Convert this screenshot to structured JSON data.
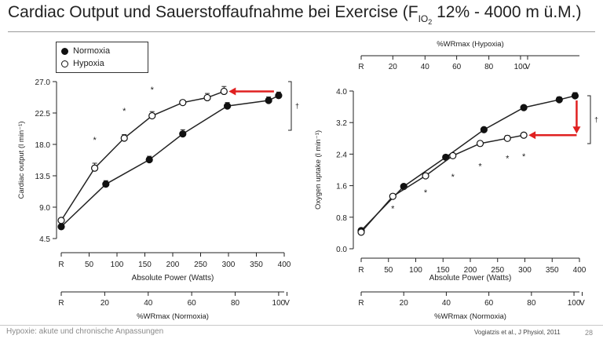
{
  "slide": {
    "title_main": "Cardiac Output und Sauerstoffaufnahme bei Exercise (F",
    "title_sub": "IO",
    "title_sub2": "2",
    "title_rest": " 12%  -  4000 m ü.M.)",
    "footer_left": "Hypoxie: akute und chronische Anpassungen",
    "footer_ref": "Vogiatzis et al., J Physiol, 2011",
    "page_number": "28"
  },
  "legend": {
    "items": [
      {
        "label": "Normoxia",
        "marker": "filled-circle"
      },
      {
        "label": "Hypoxia",
        "marker": "open-circle"
      }
    ]
  },
  "colors": {
    "arrow": "#e02020",
    "line": "#222222",
    "axis": "#222222"
  },
  "chart_data": [
    {
      "type": "line",
      "ylabel": "Cardiac output (l min⁻¹)",
      "xlabel": "Absolute Power (Watts)",
      "x_ticks": [
        "R",
        "50",
        "100",
        "150",
        "200",
        "250",
        "300",
        "350",
        "400"
      ],
      "x_tick_values": [
        0,
        50,
        100,
        150,
        200,
        250,
        300,
        350,
        400
      ],
      "y_ticks": [
        "4.5",
        "9.0",
        "13.5",
        "18.0",
        "22.5",
        "27.0"
      ],
      "y_tick_values": [
        4.5,
        9.0,
        13.5,
        18.0,
        22.5,
        27.0
      ],
      "ylim": [
        4.5,
        27.0
      ],
      "xlim": [
        0,
        400
      ],
      "series": [
        {
          "name": "Normoxia",
          "marker": "filled",
          "x": [
            0,
            80,
            158,
            218,
            298,
            372,
            390
          ],
          "y": [
            6.2,
            12.3,
            15.8,
            19.5,
            23.5,
            24.3,
            25.0
          ],
          "err": [
            0.2,
            0.5,
            0.5,
            0.6,
            0.5,
            0.5,
            0.5
          ]
        },
        {
          "name": "Hypoxia",
          "marker": "open",
          "x": [
            0,
            60,
            113,
            163,
            218,
            262,
            292
          ],
          "y": [
            7.1,
            14.6,
            18.9,
            22.1,
            24.0,
            24.7,
            25.6
          ],
          "err": [
            0.2,
            0.7,
            0.5,
            0.6,
            0.3,
            0.6,
            0.7
          ]
        }
      ],
      "significance_marks": [
        {
          "x": 60,
          "y": 18.2,
          "text": "*"
        },
        {
          "x": 113,
          "y": 22.4,
          "text": "*"
        },
        {
          "x": 163,
          "y": 25.4,
          "text": "*"
        }
      ],
      "dagger": "†",
      "top_axis": null,
      "bottom_axis": {
        "label": "%WRmax (Normoxia)",
        "tick_labels": [
          "R",
          "20",
          "40",
          "60",
          "80",
          "100",
          "V"
        ],
        "tick_power": [
          0,
          78,
          156,
          234,
          312,
          390,
          405
        ]
      }
    },
    {
      "type": "line",
      "ylabel": "Oxygen uptake (l min⁻¹)",
      "xlabel": "Absolute Power (Watts)",
      "x_ticks": [
        "R",
        "50",
        "100",
        "150",
        "200",
        "250",
        "300",
        "350",
        "400"
      ],
      "x_tick_values": [
        0,
        50,
        100,
        150,
        200,
        250,
        300,
        350,
        400
      ],
      "y_ticks": [
        "0.0",
        "0.8",
        "1.6",
        "2.4",
        "3.2",
        "4.0"
      ],
      "y_tick_values": [
        0.0,
        0.8,
        1.6,
        2.4,
        3.2,
        4.0
      ],
      "ylim": [
        0.0,
        4.0
      ],
      "xlim": [
        0,
        400
      ],
      "series": [
        {
          "name": "Normoxia",
          "marker": "filled",
          "x": [
            0,
            78,
            155,
            225,
            298,
            363,
            392
          ],
          "y": [
            0.46,
            1.58,
            2.32,
            3.02,
            3.58,
            3.78,
            3.88
          ],
          "err": [
            0.03,
            0.04,
            0.05,
            0.05,
            0.05,
            0.07,
            0.08
          ]
        },
        {
          "name": "Hypoxia",
          "marker": "open",
          "x": [
            0,
            58,
            118,
            168,
            218,
            268,
            298
          ],
          "y": [
            0.42,
            1.33,
            1.85,
            2.36,
            2.67,
            2.8,
            2.88
          ],
          "err": [
            0.03,
            0.05,
            0.04,
            0.04,
            0.05,
            0.07,
            0.06
          ]
        }
      ],
      "significance_marks": [
        {
          "x": 58,
          "y": 0.95,
          "text": "*"
        },
        {
          "x": 118,
          "y": 1.35,
          "text": "*"
        },
        {
          "x": 168,
          "y": 1.75,
          "text": "*"
        },
        {
          "x": 218,
          "y": 2.02,
          "text": "*"
        },
        {
          "x": 268,
          "y": 2.22,
          "text": "*"
        },
        {
          "x": 298,
          "y": 2.27,
          "text": "*"
        }
      ],
      "dagger": "†",
      "top_axis": {
        "label": "%WRmax (Hypoxia)",
        "tick_labels": [
          "R",
          "20",
          "40",
          "60",
          "80",
          "100",
          "V"
        ],
        "tick_power": [
          0,
          58,
          117,
          175,
          234,
          292,
          305
        ]
      },
      "bottom_axis": {
        "label": "%WRmax (Normoxia)",
        "tick_labels": [
          "R",
          "20",
          "40",
          "60",
          "80",
          "100",
          "V"
        ],
        "tick_power": [
          0,
          78,
          156,
          234,
          312,
          390,
          405
        ]
      }
    }
  ]
}
